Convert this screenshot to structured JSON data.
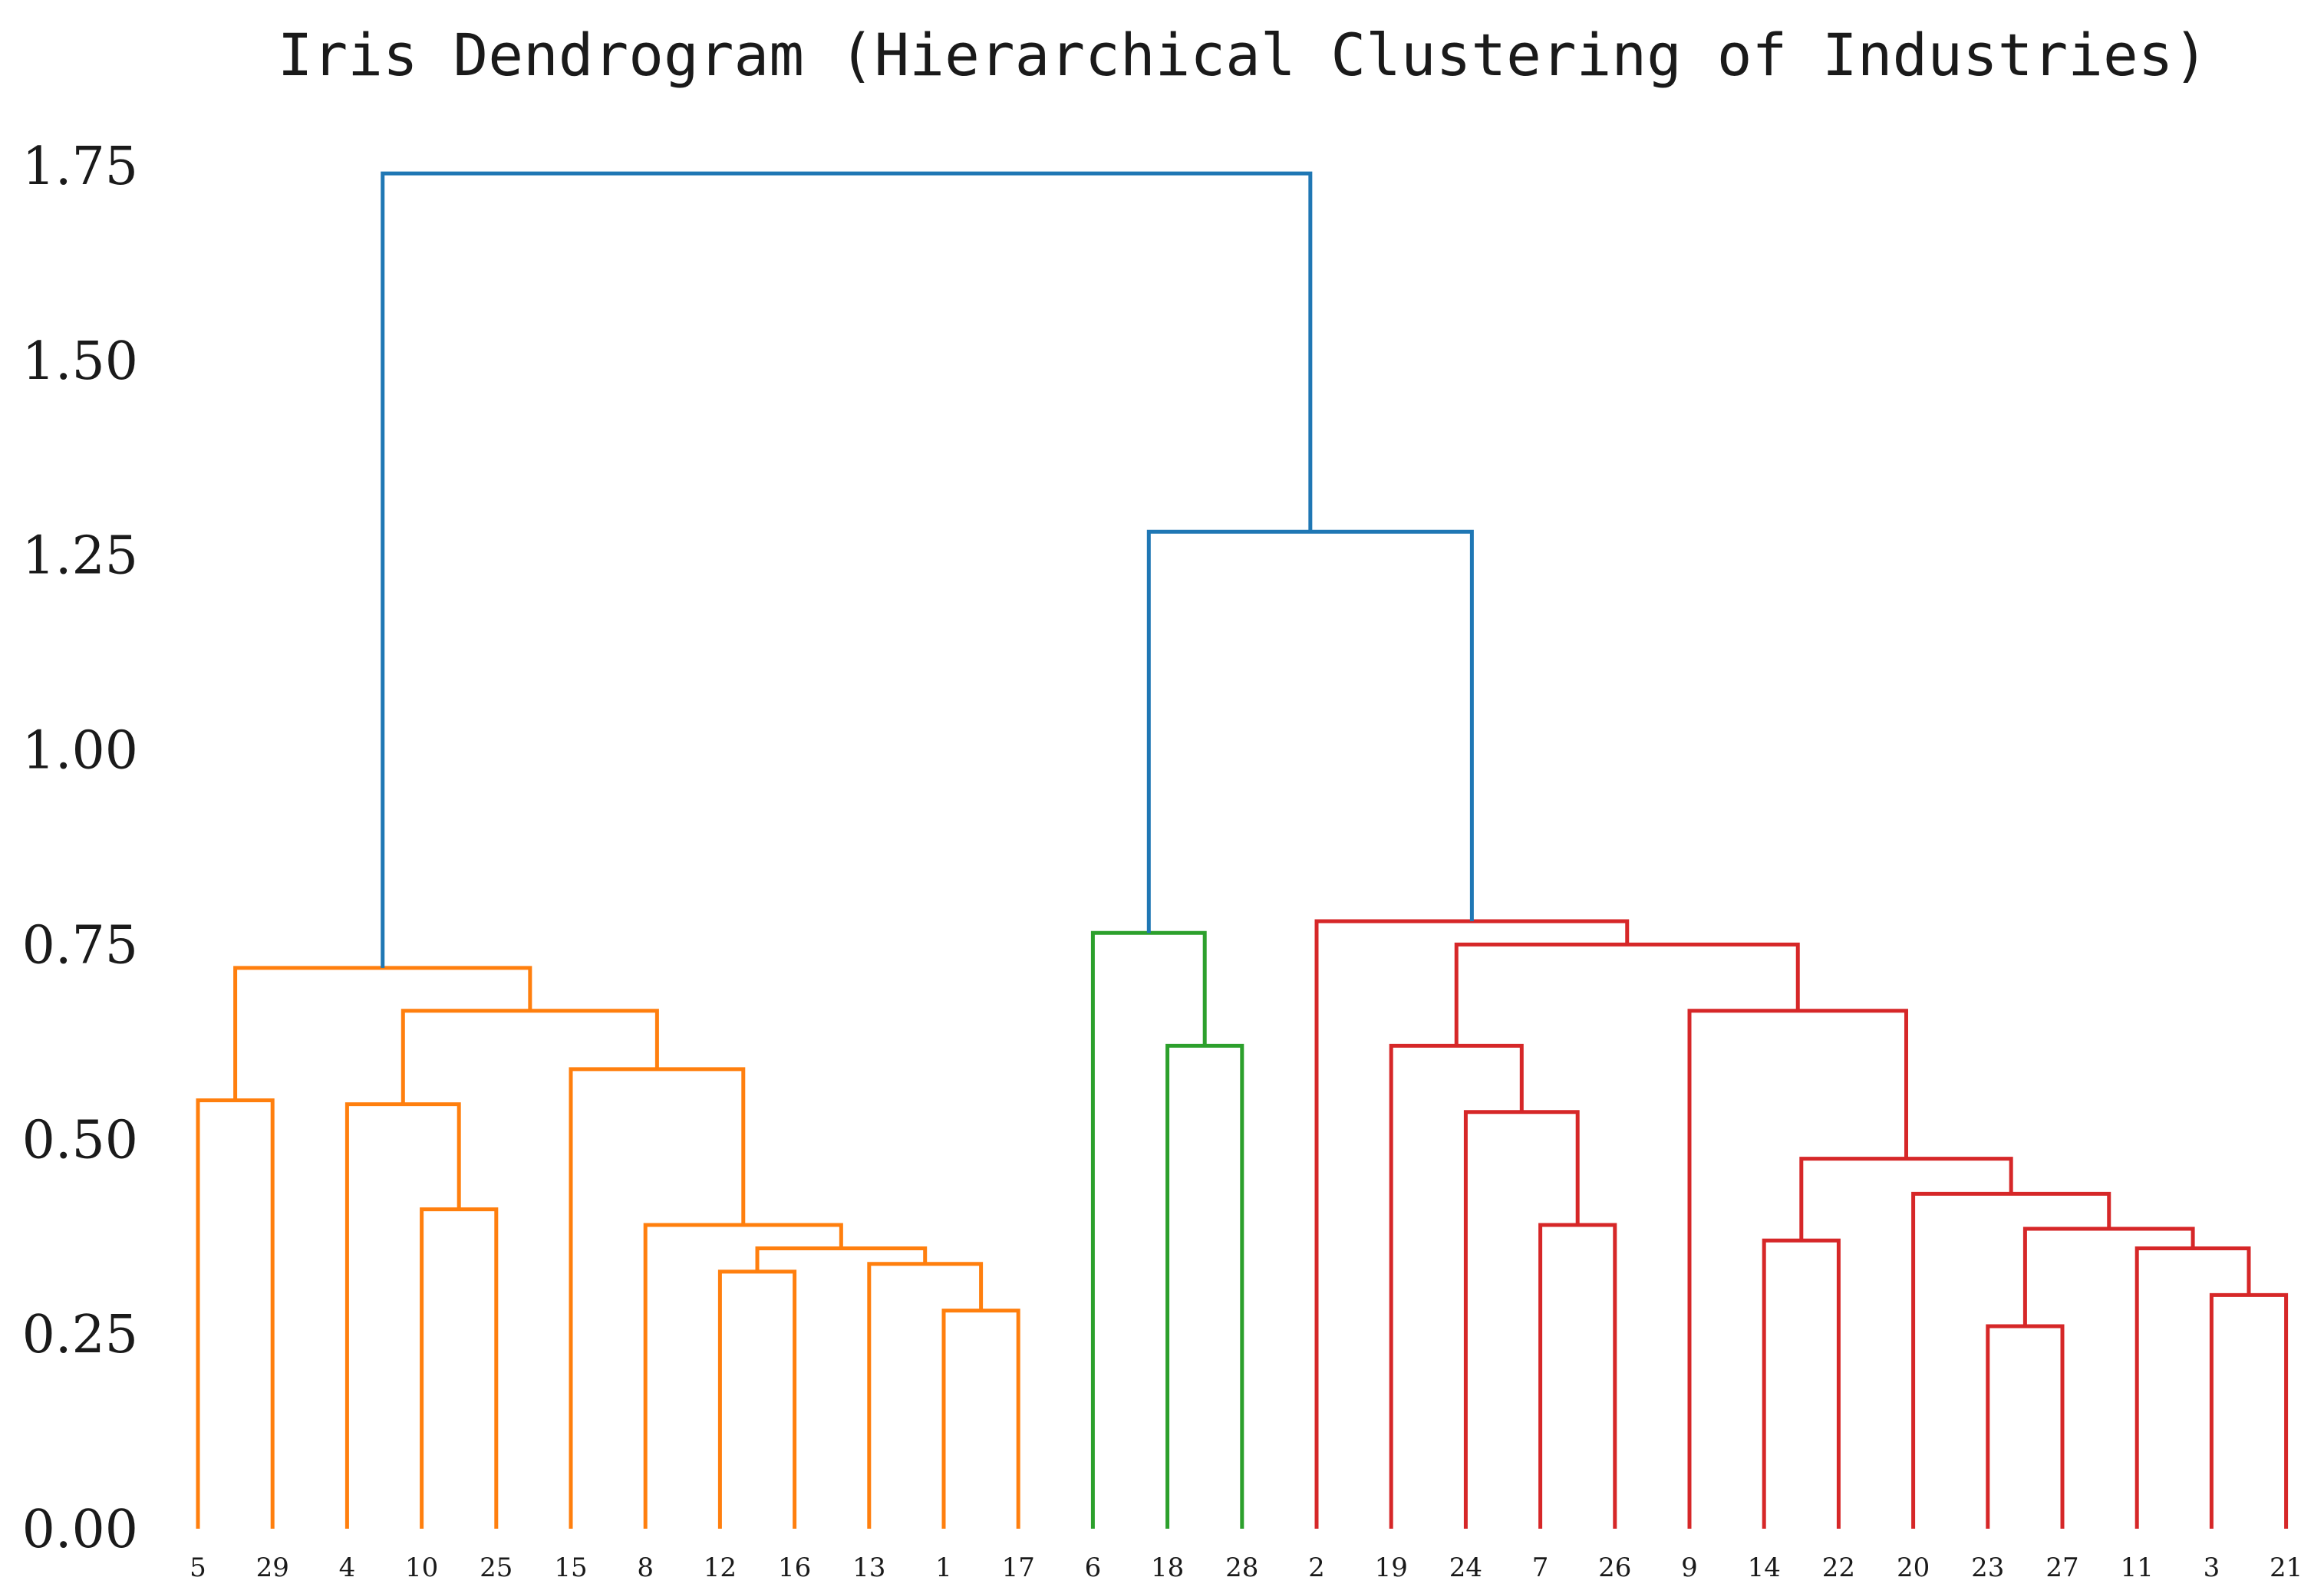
{
  "chart_data": {
    "type": "dendrogram",
    "title": "Iris Dendrogram (Hierarchical Clustering of Industries)",
    "xlabel": "",
    "ylabel": "",
    "ylim": [
      0,
      1.75
    ],
    "yticks": [
      "0.00",
      "0.25",
      "0.50",
      "0.75",
      "1.00",
      "1.25",
      "1.50",
      "1.75"
    ],
    "grid": false,
    "leaves": [
      "5",
      "29",
      "4",
      "10",
      "25",
      "15",
      "8",
      "12",
      "16",
      "13",
      "1",
      "17",
      "6",
      "18",
      "28",
      "2",
      "19",
      "24",
      "7",
      "26",
      "9",
      "14",
      "22",
      "20",
      "23",
      "27",
      "11",
      "3",
      "21"
    ],
    "colors": {
      "link_above_threshold": "#1f77b4",
      "cluster_1": "#ff7f0e",
      "cluster_2": "#2ca02c",
      "cluster_3": "#d62728"
    },
    "merges": [
      {
        "id": "m1",
        "left": "L10",
        "right": "L11",
        "height": 0.28,
        "color": "cluster_1"
      },
      {
        "id": "m2",
        "left": "L7",
        "right": "L8",
        "height": 0.33,
        "color": "cluster_1"
      },
      {
        "id": "m3",
        "left": "L9",
        "right": "m1",
        "height": 0.34,
        "color": "cluster_1"
      },
      {
        "id": "m4",
        "left": "m2",
        "right": "m3",
        "height": 0.36,
        "color": "cluster_1"
      },
      {
        "id": "m5",
        "left": "L6",
        "right": "m4",
        "height": 0.39,
        "color": "cluster_1"
      },
      {
        "id": "m6",
        "left": "L5",
        "right": "m5",
        "height": 0.59,
        "color": "cluster_1"
      },
      {
        "id": "m7",
        "left": "L3",
        "right": "L4",
        "height": 0.41,
        "color": "cluster_1"
      },
      {
        "id": "m8",
        "left": "L2",
        "right": "m7",
        "height": 0.545,
        "color": "cluster_1"
      },
      {
        "id": "m9",
        "left": "m8",
        "right": "m6",
        "height": 0.665,
        "color": "cluster_1"
      },
      {
        "id": "m10",
        "left": "L0",
        "right": "L1",
        "height": 0.55,
        "color": "cluster_1"
      },
      {
        "id": "m11",
        "left": "m10",
        "right": "m9",
        "height": 0.72,
        "color": "cluster_1"
      },
      {
        "id": "m12",
        "left": "L13",
        "right": "L14",
        "height": 0.62,
        "color": "cluster_2"
      },
      {
        "id": "m13",
        "left": "L12",
        "right": "m12",
        "height": 0.765,
        "color": "cluster_2"
      },
      {
        "id": "m14",
        "left": "L18",
        "right": "L19",
        "height": 0.39,
        "color": "cluster_3"
      },
      {
        "id": "m15",
        "left": "L17",
        "right": "m14",
        "height": 0.535,
        "color": "cluster_3"
      },
      {
        "id": "m16",
        "left": "L16",
        "right": "m15",
        "height": 0.62,
        "color": "cluster_3"
      },
      {
        "id": "m17",
        "left": "L27",
        "right": "L28",
        "height": 0.3,
        "color": "cluster_3"
      },
      {
        "id": "m18",
        "left": "L26",
        "right": "m17",
        "height": 0.36,
        "color": "cluster_3"
      },
      {
        "id": "m19",
        "left": "L24",
        "right": "L25",
        "height": 0.26,
        "color": "cluster_3"
      },
      {
        "id": "m20",
        "left": "m19",
        "right": "m18",
        "height": 0.385,
        "color": "cluster_3"
      },
      {
        "id": "m21",
        "left": "L23",
        "right": "m20",
        "height": 0.43,
        "color": "cluster_3"
      },
      {
        "id": "m22",
        "left": "L21",
        "right": "L22",
        "height": 0.37,
        "color": "cluster_3"
      },
      {
        "id": "m23",
        "left": "m22",
        "right": "m21",
        "height": 0.475,
        "color": "cluster_3"
      },
      {
        "id": "m24",
        "left": "L20",
        "right": "m23",
        "height": 0.665,
        "color": "cluster_3"
      },
      {
        "id": "m25",
        "left": "m16",
        "right": "m24",
        "height": 0.75,
        "color": "cluster_3"
      },
      {
        "id": "m26",
        "left": "L15",
        "right": "m25",
        "height": 0.78,
        "color": "cluster_3"
      },
      {
        "id": "m27",
        "left": "m13",
        "right": "m26",
        "height": 1.28,
        "color": "link_above_threshold"
      },
      {
        "id": "m28",
        "left": "m11",
        "right": "m27",
        "height": 1.74,
        "color": "link_above_threshold"
      }
    ]
  }
}
